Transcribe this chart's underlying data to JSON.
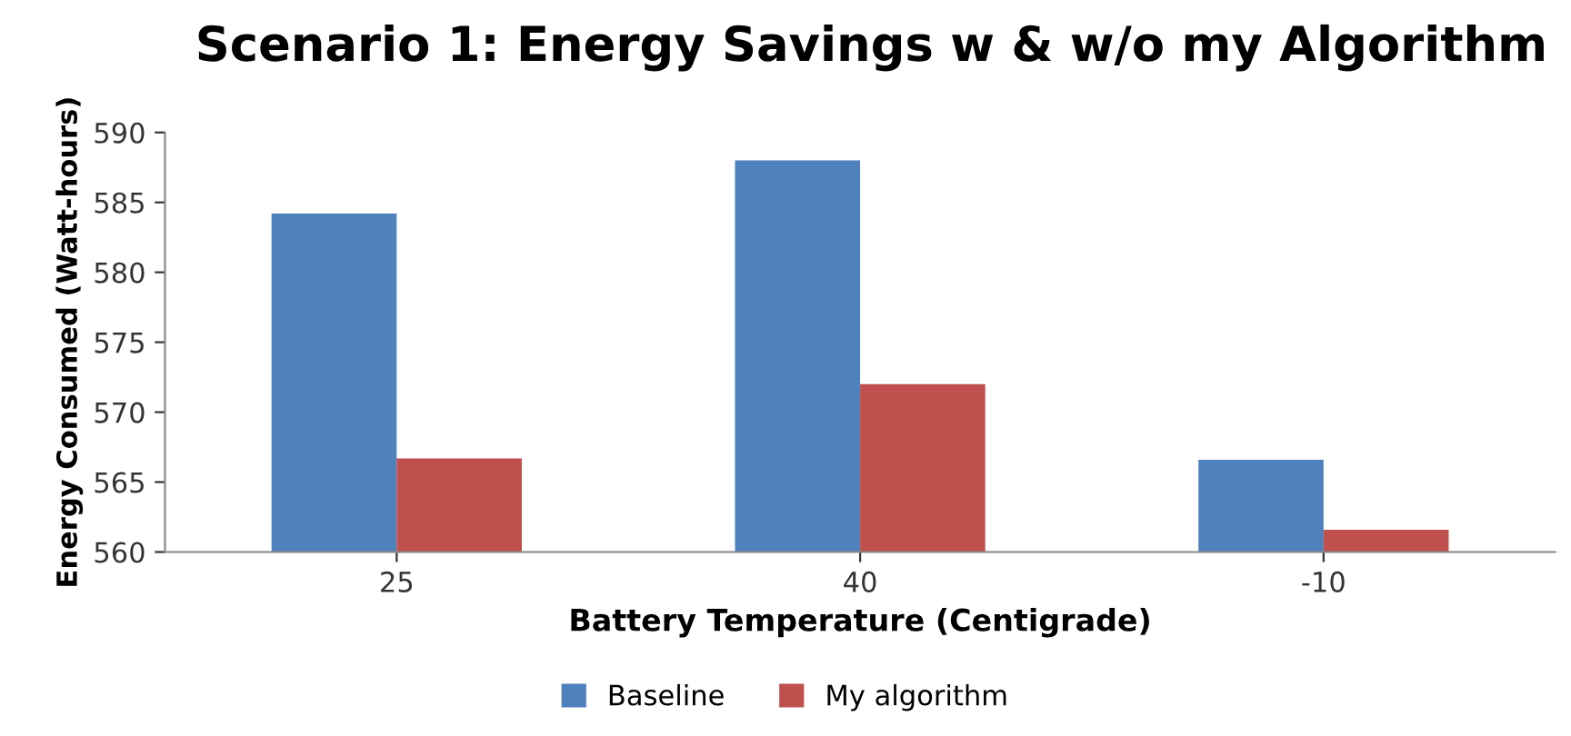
{
  "chart_data": {
    "type": "bar",
    "title": "Scenario 1: Energy Savings w & w/o my Algorithm",
    "xlabel": "Battery Temperature (Centigrade)",
    "ylabel": "Energy Consumed (Watt-hours)",
    "categories": [
      "25",
      "40",
      "-10"
    ],
    "series": [
      {
        "name": "Baseline",
        "color": "#4f81bd",
        "values": [
          584.2,
          588.0,
          566.6
        ]
      },
      {
        "name": "My algorithm",
        "color": "#c0504d",
        "values": [
          566.7,
          572.0,
          561.6
        ]
      }
    ],
    "ylim": [
      560,
      590
    ],
    "yticks": [
      560,
      565,
      570,
      575,
      580,
      585,
      590
    ],
    "grid": false,
    "legend": "bottom"
  }
}
